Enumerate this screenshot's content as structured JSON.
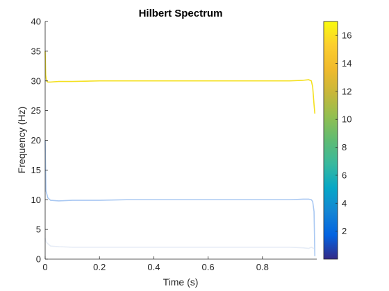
{
  "chart_data": {
    "type": "line",
    "title": "Hilbert Spectrum",
    "xlabel": "Time (s)",
    "ylabel": "Frequency (Hz)",
    "xlim": [
      0,
      1
    ],
    "ylim": [
      0,
      40
    ],
    "x_ticks": [
      0,
      0.2,
      0.4,
      0.6,
      0.8
    ],
    "x_tick_labels": [
      "0",
      "0.2",
      "0.4",
      "0.6",
      "0.8"
    ],
    "y_ticks": [
      0,
      5,
      10,
      15,
      20,
      25,
      30,
      35,
      40
    ],
    "y_tick_labels": [
      "0",
      "5",
      "10",
      "15",
      "20",
      "25",
      "30",
      "35",
      "40"
    ],
    "grid": false,
    "colorbar": {
      "range": [
        0,
        17
      ],
      "ticks": [
        2,
        4,
        6,
        8,
        10,
        12,
        14,
        16
      ],
      "tick_labels": [
        "2",
        "4",
        "6",
        "8",
        "10",
        "12",
        "14",
        "16"
      ],
      "colormap": "parula",
      "location": "right"
    },
    "series": [
      {
        "color": "#f4e01e",
        "x": [
          0.0,
          0.002,
          0.005,
          0.01,
          0.02,
          0.05,
          0.1,
          0.2,
          0.3,
          0.4,
          0.5,
          0.6,
          0.7,
          0.8,
          0.9,
          0.95,
          0.97,
          0.98,
          0.985,
          0.99,
          0.993
        ],
        "y": [
          35,
          31,
          30,
          29.8,
          29.8,
          29.9,
          29.9,
          30.0,
          30.0,
          30.0,
          30.0,
          30.0,
          30.0,
          30.0,
          30.0,
          30.1,
          30.2,
          30.0,
          29.0,
          26.0,
          24.5
        ]
      },
      {
        "color": "#a9c8f2",
        "x": [
          0.0,
          0.003,
          0.01,
          0.02,
          0.05,
          0.1,
          0.2,
          0.3,
          0.4,
          0.5,
          0.6,
          0.7,
          0.8,
          0.9,
          0.95,
          0.97,
          0.98,
          0.985,
          0.99,
          0.993
        ],
        "y": [
          20,
          11.5,
          10.3,
          9.9,
          9.8,
          9.9,
          9.9,
          10.0,
          10.0,
          10.0,
          10.0,
          10.0,
          10.0,
          10.0,
          10.1,
          10.1,
          10.0,
          9.7,
          8.0,
          0.5
        ]
      },
      {
        "color": "#e6ecf6",
        "x": [
          0.0,
          0.005,
          0.02,
          0.05,
          0.1,
          0.2,
          0.3,
          0.4,
          0.5,
          0.6,
          0.7,
          0.8,
          0.9,
          0.95,
          0.97,
          0.98,
          0.99
        ],
        "y": [
          3.5,
          2.8,
          2.2,
          2.1,
          2.0,
          2.0,
          2.0,
          2.0,
          2.0,
          2.0,
          2.0,
          2.0,
          2.0,
          1.9,
          1.8,
          2.0,
          1.8
        ]
      }
    ]
  }
}
